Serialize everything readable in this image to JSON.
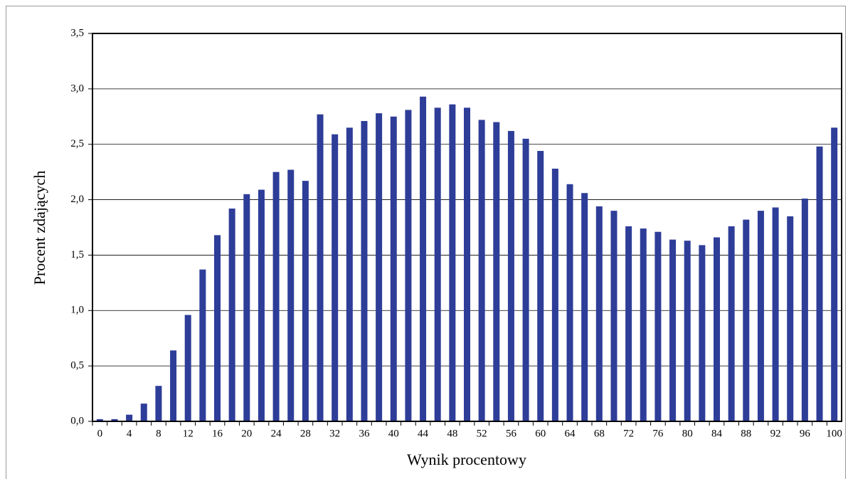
{
  "chart_data": {
    "type": "bar",
    "x_label": "Wynik procentowy",
    "y_label": "Procent zdających",
    "categories": [
      "0",
      null,
      "4",
      null,
      "8",
      null,
      "12",
      null,
      "16",
      null,
      "20",
      null,
      "24",
      null,
      "28",
      null,
      "32",
      null,
      "36",
      null,
      "40",
      null,
      "44",
      null,
      "48",
      null,
      "52",
      null,
      "56",
      null,
      "60",
      null,
      "64",
      null,
      "68",
      null,
      "72",
      null,
      "76",
      null,
      "80",
      null,
      "84",
      null,
      "88",
      null,
      "92",
      null,
      "96",
      null,
      "100"
    ],
    "values": [
      0.02,
      0.02,
      0.06,
      0.16,
      0.32,
      0.64,
      0.96,
      1.37,
      1.68,
      1.92,
      2.05,
      2.09,
      2.25,
      2.27,
      2.17,
      2.77,
      2.59,
      2.65,
      2.71,
      2.78,
      2.75,
      2.81,
      2.93,
      2.83,
      2.86,
      2.83,
      2.72,
      2.7,
      2.62,
      2.55,
      2.44,
      2.28,
      2.14,
      2.06,
      1.94,
      1.9,
      1.76,
      1.74,
      1.71,
      1.64,
      1.63,
      1.59,
      1.66,
      1.76,
      1.82,
      1.9,
      1.93,
      1.85,
      2.01,
      2.48,
      2.65
    ],
    "color": "#2e3d98",
    "ylim": [
      0,
      3.5
    ],
    "yticks": [
      {
        "value": 0,
        "label": "0,0"
      },
      {
        "value": 0.5,
        "label": "0,5"
      },
      {
        "value": 1,
        "label": "1,0"
      },
      {
        "value": 1.5,
        "label": "1,5"
      },
      {
        "value": 2,
        "label": "2,0"
      },
      {
        "value": 2.5,
        "label": "2,5"
      },
      {
        "value": 3,
        "label": "3,0"
      },
      {
        "value": 3.5,
        "label": "3,5"
      }
    ],
    "grid": true
  }
}
